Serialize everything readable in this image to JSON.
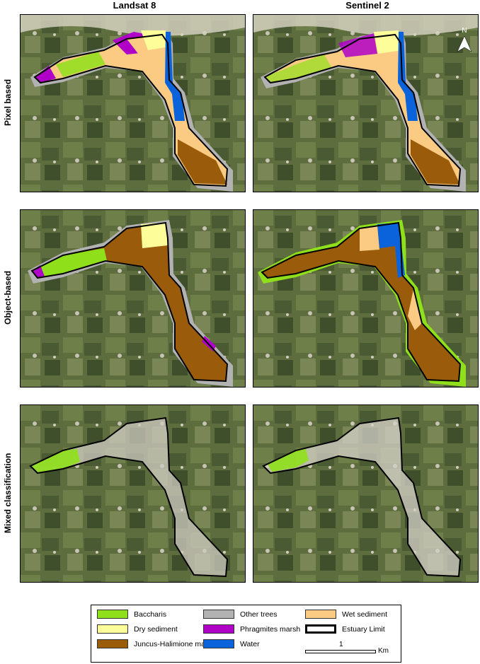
{
  "columns": [
    "Landsat 8",
    "Sentinel 2"
  ],
  "rows": [
    "Pixel based",
    "Object-based",
    "Mixed classification"
  ],
  "north_label": "N",
  "legend": {
    "items": [
      {
        "label": "Baccharis",
        "color": "#8fe01b"
      },
      {
        "label": "Dry sediment",
        "color": "#fdfd9a"
      },
      {
        "label": "Juncus-Halimione marsh",
        "color": "#9a5c0b"
      },
      {
        "label": "Other trees",
        "color": "#b2b2b2"
      },
      {
        "label": "Phragmites marsh",
        "color": "#b000c8"
      },
      {
        "label": "Water",
        "color": "#0a63db"
      },
      {
        "label": "Wet sediment",
        "color": "#fbcb83"
      },
      {
        "label": "Estuary Limit",
        "color": "#ffffff"
      }
    ],
    "scale_value": "1",
    "scale_unit": "Km"
  },
  "colors": {
    "baccharis": "#8fe01b",
    "dry_sediment": "#fdfd9a",
    "juncus": "#9a5c0b",
    "other_trees": "#b2b2b2",
    "phragmites": "#b000c8",
    "water": "#0a63db",
    "wet_sediment": "#fbcb83"
  }
}
